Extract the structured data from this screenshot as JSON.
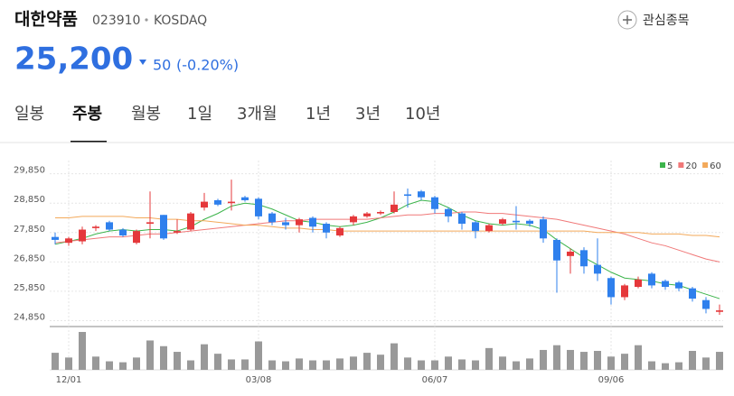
{
  "header": {
    "title": "대한약품",
    "code": "023910",
    "market": "KOSDAQ",
    "watch_button": "관심종목",
    "price": "25,200",
    "change": "50",
    "change_rate": "(-0.20%)"
  },
  "tabs": [
    "일봉",
    "주봉",
    "월봉",
    "1일",
    "3개월",
    "1년",
    "3년",
    "10년"
  ],
  "active_tab": 1,
  "chart_data": {
    "type": "candlestick",
    "categories": [
      null,
      "12/01",
      null,
      null,
      null,
      null,
      null,
      null,
      null,
      null,
      null,
      null,
      null,
      null,
      null,
      "03/08",
      null,
      null,
      null,
      null,
      null,
      null,
      null,
      null,
      null,
      null,
      null,
      null,
      "06/07",
      null,
      null,
      null,
      null,
      null,
      null,
      null,
      null,
      null,
      null,
      null,
      null,
      "09/06",
      null,
      null,
      null,
      null,
      null,
      null,
      null,
      null
    ],
    "open": [
      27700,
      27500,
      27550,
      28000,
      28200,
      27950,
      27500,
      28150,
      28450,
      27850,
      27950,
      28700,
      28950,
      28850,
      29050,
      29000,
      28500,
      28200,
      28100,
      28350,
      28150,
      27750,
      28200,
      28400,
      28500,
      28550,
      29150,
      29250,
      29050,
      28650,
      28500,
      28200,
      27900,
      28150,
      28250,
      28250,
      28300,
      27600,
      27050,
      27250,
      26750,
      26300,
      25650,
      26000,
      26450,
      26200,
      26150,
      25950,
      25550,
      25150
    ],
    "high": [
      27850,
      27700,
      28050,
      28100,
      28250,
      28000,
      27950,
      29250,
      28450,
      28300,
      28550,
      29200,
      29000,
      29650,
      29100,
      29050,
      28550,
      28350,
      28350,
      28400,
      28200,
      28050,
      28450,
      28550,
      28600,
      29250,
      29350,
      29300,
      29100,
      28700,
      28550,
      28250,
      28150,
      28350,
      28750,
      28300,
      28400,
      27650,
      27300,
      27350,
      27650,
      26350,
      26100,
      26350,
      26500,
      26250,
      26200,
      26000,
      25650,
      25400
    ],
    "low": [
      27450,
      27400,
      27450,
      27900,
      27900,
      27700,
      27450,
      27650,
      27600,
      27800,
      27900,
      28600,
      28750,
      28600,
      28900,
      28300,
      28100,
      27950,
      27850,
      27850,
      27650,
      27700,
      28100,
      28350,
      28450,
      28500,
      28700,
      28950,
      28500,
      28200,
      27950,
      27650,
      27850,
      28100,
      27950,
      28050,
      27500,
      25800,
      26450,
      26450,
      26200,
      25400,
      25550,
      25950,
      25950,
      25900,
      25850,
      25500,
      25100,
      25050
    ],
    "close": [
      27600,
      27650,
      27950,
      28050,
      27950,
      27750,
      27900,
      28200,
      27650,
      27900,
      28500,
      28900,
      28800,
      28900,
      28950,
      28400,
      28200,
      28100,
      28300,
      28050,
      27850,
      28000,
      28400,
      28500,
      28550,
      28800,
      29100,
      29050,
      28650,
      28400,
      28150,
      27900,
      28100,
      28300,
      28200,
      28150,
      27650,
      26900,
      27200,
      26700,
      26450,
      25650,
      26050,
      26250,
      26050,
      26000,
      25950,
      25600,
      25250,
      25200
    ],
    "volume": [
      18,
      13,
      40,
      14,
      9,
      8,
      13,
      31,
      25,
      19,
      10,
      27,
      17,
      11,
      11,
      30,
      10,
      9,
      12,
      10,
      10,
      12,
      14,
      18,
      16,
      28,
      13,
      10,
      10,
      14,
      11,
      10,
      23,
      14,
      9,
      12,
      21,
      26,
      21,
      19,
      20,
      14,
      17,
      26,
      9,
      7,
      8,
      20,
      13,
      19
    ],
    "up_color": "#e5383b",
    "down_color": "#2f80ed",
    "series": [
      {
        "name": "5",
        "color": "#3cb44b",
        "values": [
          27450,
          27550,
          27650,
          27800,
          27900,
          27950,
          27900,
          27950,
          27950,
          27900,
          28050,
          28300,
          28500,
          28750,
          28850,
          28800,
          28650,
          28450,
          28250,
          28200,
          28100,
          28050,
          28100,
          28200,
          28350,
          28550,
          28800,
          28950,
          28900,
          28700,
          28450,
          28250,
          28150,
          28100,
          28150,
          28100,
          27950,
          27600,
          27300,
          27000,
          26750,
          26500,
          26300,
          26250,
          26200,
          26100,
          26050,
          25900,
          25750,
          25600
        ]
      },
      {
        "name": "20",
        "color": "#f07878",
        "values": [
          27500,
          27550,
          27600,
          27650,
          27700,
          27700,
          27750,
          27800,
          27800,
          27850,
          27900,
          27950,
          28000,
          28050,
          28100,
          28150,
          28200,
          28250,
          28250,
          28300,
          28300,
          28300,
          28300,
          28300,
          28350,
          28400,
          28450,
          28450,
          28500,
          28500,
          28550,
          28550,
          28500,
          28500,
          28450,
          28400,
          28350,
          28300,
          28200,
          28100,
          28000,
          27900,
          27800,
          27650,
          27500,
          27400,
          27250,
          27100,
          26950,
          26850
        ]
      },
      {
        "name": "60",
        "color": "#f3a95a",
        "values": [
          28350,
          28350,
          28400,
          28400,
          28400,
          28400,
          28350,
          28350,
          28300,
          28300,
          28250,
          28250,
          28200,
          28150,
          28100,
          28100,
          28050,
          28000,
          28000,
          27950,
          27950,
          27900,
          27900,
          27900,
          27900,
          27900,
          27900,
          27900,
          27900,
          27900,
          27900,
          27900,
          27900,
          27900,
          27900,
          27900,
          27900,
          27900,
          27900,
          27900,
          27850,
          27850,
          27850,
          27850,
          27800,
          27800,
          27800,
          27750,
          27750,
          27700
        ]
      }
    ],
    "ylim": [
      24650,
      30300
    ],
    "yticks": [
      {
        "value": 24850,
        "label": "24,850"
      },
      {
        "value": 25850,
        "label": "25,850"
      },
      {
        "value": 26850,
        "label": "26,850"
      },
      {
        "value": 27850,
        "label": "27,850"
      },
      {
        "value": 28850,
        "label": "28,850"
      },
      {
        "value": 29850,
        "label": "29,850"
      }
    ],
    "grid": true
  }
}
